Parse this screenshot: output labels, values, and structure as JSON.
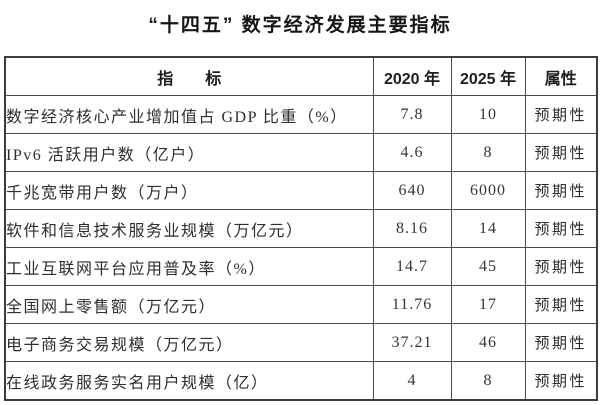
{
  "title": "“十四五” 数字经济发展主要指标",
  "table": {
    "headers": {
      "indicator": "指　　标",
      "y2020": "2020 年",
      "y2025": "2025 年",
      "attribute": "属性"
    },
    "rows": [
      {
        "indicator": "数字经济核心产业增加值占 GDP 比重（%）",
        "y2020": "7.8",
        "y2025": "10",
        "attribute": "预期性"
      },
      {
        "indicator": "IPv6 活跃用户数（亿户）",
        "y2020": "4.6",
        "y2025": "8",
        "attribute": "预期性"
      },
      {
        "indicator": "千兆宽带用户数（万户）",
        "y2020": "640",
        "y2025": "6000",
        "attribute": "预期性"
      },
      {
        "indicator": "软件和信息技术服务业规模（万亿元）",
        "y2020": "8.16",
        "y2025": "14",
        "attribute": "预期性"
      },
      {
        "indicator": "工业互联网平台应用普及率（%）",
        "y2020": "14.7",
        "y2025": "45",
        "attribute": "预期性"
      },
      {
        "indicator": "全国网上零售额（万亿元）",
        "y2020": "11.76",
        "y2025": "17",
        "attribute": "预期性"
      },
      {
        "indicator": "电子商务交易规模（万亿元）",
        "y2020": "37.21",
        "y2025": "46",
        "attribute": "预期性"
      },
      {
        "indicator": "在线政务服务实名用户规模（亿）",
        "y2020": "4",
        "y2025": "8",
        "attribute": "预期性"
      }
    ]
  },
  "chart_data": {
    "type": "table",
    "title": "“十四五”数字经济发展主要指标",
    "columns": [
      "指标",
      "2020年",
      "2025年",
      "属性"
    ],
    "rows": [
      [
        "数字经济核心产业增加值占GDP比重（%）",
        7.8,
        10,
        "预期性"
      ],
      [
        "IPv6活跃用户数（亿户）",
        4.6,
        8,
        "预期性"
      ],
      [
        "千兆宽带用户数（万户）",
        640,
        6000,
        "预期性"
      ],
      [
        "软件和信息技术服务业规模（万亿元）",
        8.16,
        14,
        "预期性"
      ],
      [
        "工业互联网平台应用普及率（%）",
        14.7,
        45,
        "预期性"
      ],
      [
        "全国网上零售额（万亿元）",
        11.76,
        17,
        "预期性"
      ],
      [
        "电子商务交易规模（万亿元）",
        37.21,
        46,
        "预期性"
      ],
      [
        "在线政务服务实名用户规模（亿）",
        4,
        8,
        "预期性"
      ]
    ]
  }
}
